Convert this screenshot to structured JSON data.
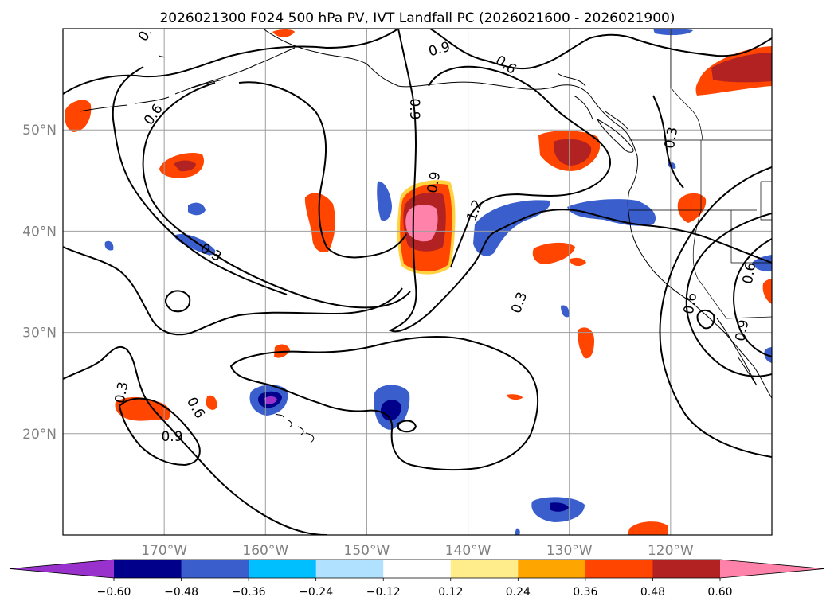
{
  "title": "2026021300 F024 500 hPa PV, IVT Landfall PC (2026021600 - 2026021900)",
  "map": {
    "extent": {
      "lon": [
        -180,
        -110
      ],
      "lat": [
        10,
        60
      ]
    },
    "gridlines": true,
    "lat_labels": [
      {
        "lat": 50,
        "label": "50°N"
      },
      {
        "lat": 40,
        "label": "40°N"
      },
      {
        "lat": 30,
        "label": "30°N"
      },
      {
        "lat": 20,
        "label": "20°N"
      }
    ],
    "lon_labels": [
      {
        "lon": -170,
        "label": "170°W"
      },
      {
        "lon": -160,
        "label": "160°W"
      },
      {
        "lon": -150,
        "label": "150°W"
      },
      {
        "lon": -140,
        "label": "140°W"
      },
      {
        "lon": -130,
        "label": "130°W"
      },
      {
        "lon": -120,
        "label": "120°W"
      }
    ],
    "contour_labels": [
      "0.6",
      "0.6",
      "0.9",
      "0.6",
      "0.9",
      "0.9",
      "1.2",
      "0.3",
      "0.3",
      "0.3",
      "0.3",
      "0.6",
      "0.9",
      "0.6",
      "0.6",
      "0.9"
    ]
  },
  "colorbar": {
    "ticks": [
      "−0.60",
      "−0.48",
      "−0.36",
      "−0.24",
      "−0.12",
      "0.12",
      "0.24",
      "0.36",
      "0.48",
      "0.60"
    ],
    "colors": [
      "#9932cc",
      "#00008b",
      "#3a5fcd",
      "#00bfff",
      "#b0e2ff",
      "#ffffff",
      "#ffec8b",
      "#ffa500",
      "#ff4500",
      "#b22222",
      "#ff82ab"
    ]
  },
  "chart_data": {
    "type": "heatmap",
    "title": "2026021300 F024 500 hPa PV, IVT Landfall PC (2026021600 - 2026021900)",
    "xlabel": "",
    "ylabel": "",
    "xlim": [
      -180,
      -110
    ],
    "ylim": [
      10,
      60
    ],
    "colorbar_levels": [
      -0.6,
      -0.48,
      -0.36,
      -0.24,
      -0.12,
      0.12,
      0.24,
      0.36,
      0.48,
      0.6
    ],
    "contour_levels": [
      0.3,
      0.6,
      0.9,
      1.2
    ],
    "anomaly_cells": [
      {
        "lon": -146,
        "lat": 40.5,
        "value": 0.65
      },
      {
        "lon": -130,
        "lat": 47.5,
        "value": 0.5
      },
      {
        "lon": -115,
        "lat": 57,
        "value": 0.5
      },
      {
        "lon": -167.5,
        "lat": 46.5,
        "value": 0.5
      },
      {
        "lon": -177,
        "lat": 51,
        "value": 0.4
      },
      {
        "lon": -155,
        "lat": 40,
        "value": 0.4
      },
      {
        "lon": -172,
        "lat": 22.5,
        "value": 0.4
      },
      {
        "lon": -128,
        "lat": 36,
        "value": 0.4
      },
      {
        "lon": -139,
        "lat": 39.5,
        "value": -0.45
      },
      {
        "lon": -127,
        "lat": 41.5,
        "value": -0.45
      },
      {
        "lon": -160,
        "lat": 23.5,
        "value": -0.62
      },
      {
        "lon": -147.5,
        "lat": 23,
        "value": -0.55
      },
      {
        "lon": -129,
        "lat": 13,
        "value": -0.5
      },
      {
        "lon": -148,
        "lat": 42.5,
        "value": -0.35
      },
      {
        "lon": -164,
        "lat": 39,
        "value": -0.3
      }
    ]
  }
}
